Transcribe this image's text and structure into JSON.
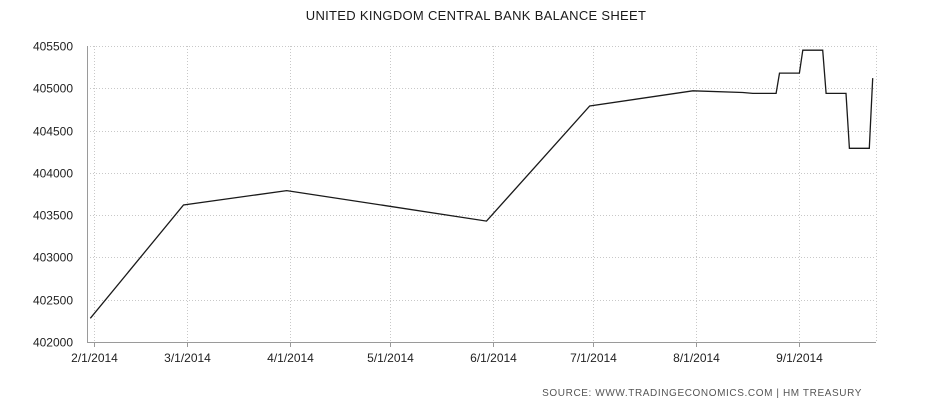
{
  "chart_data": {
    "type": "line",
    "title": "UNITED KINGDOM CENTRAL BANK BALANCE SHEET",
    "source_label": "SOURCE:  WWW.TRADINGECONOMICS.COM  |  HM TREASURY",
    "xlabel": "",
    "ylabel": "",
    "x_ticks": [
      "2/1/2014",
      "3/1/2014",
      "4/1/2014",
      "5/1/2014",
      "6/1/2014",
      "7/1/2014",
      "8/1/2014",
      "9/1/2014"
    ],
    "y_ticks": [
      402000,
      402500,
      403000,
      403500,
      404000,
      404500,
      405000,
      405500
    ],
    "ylim": [
      402000,
      405500
    ],
    "xlim": [
      "2014-01-30",
      "2014-09-24"
    ],
    "grid": true,
    "line_color": "#1a1a1a",
    "series": [
      {
        "values": [
          {
            "x": "2014-01-31",
            "y": 402280
          },
          {
            "x": "2014-02-28",
            "y": 403620
          },
          {
            "x": "2014-03-31",
            "y": 403790
          },
          {
            "x": "2014-04-30",
            "y": 403610
          },
          {
            "x": "2014-05-30",
            "y": 403430
          },
          {
            "x": "2014-06-30",
            "y": 404790
          },
          {
            "x": "2014-07-31",
            "y": 404970
          },
          {
            "x": "2014-08-15",
            "y": 404950
          },
          {
            "x": "2014-08-18",
            "y": 404940
          },
          {
            "x": "2014-08-25",
            "y": 404940
          },
          {
            "x": "2014-08-26",
            "y": 405180
          },
          {
            "x": "2014-09-01",
            "y": 405180
          },
          {
            "x": "2014-09-02",
            "y": 405450
          },
          {
            "x": "2014-09-08",
            "y": 405450
          },
          {
            "x": "2014-09-09",
            "y": 404940
          },
          {
            "x": "2014-09-15",
            "y": 404940
          },
          {
            "x": "2014-09-16",
            "y": 404290
          },
          {
            "x": "2014-09-22",
            "y": 404290
          },
          {
            "x": "2014-09-23",
            "y": 405120
          }
        ]
      }
    ]
  }
}
